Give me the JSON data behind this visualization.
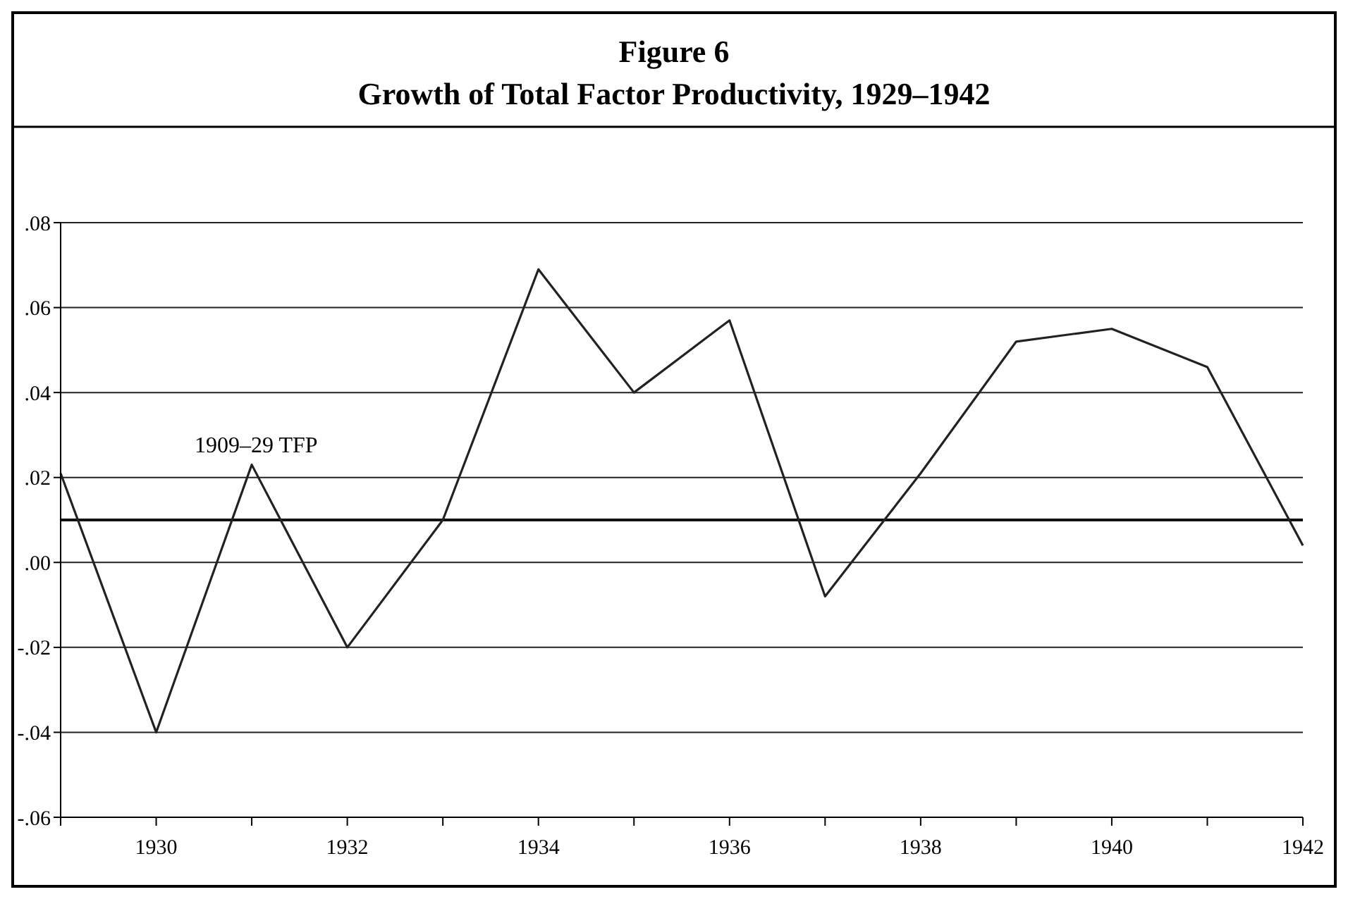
{
  "chart_data": {
    "type": "line",
    "title": "Figure 6",
    "subtitle": "Growth of Total Factor Productivity, 1929–1942",
    "x": [
      1929,
      1930,
      1931,
      1932,
      1933,
      1934,
      1935,
      1936,
      1937,
      1938,
      1939,
      1940,
      1941,
      1942
    ],
    "series": [
      {
        "color": "#222222",
        "values": [
          0.021,
          -0.04,
          0.023,
          -0.02,
          0.01,
          0.069,
          0.04,
          0.057,
          -0.008,
          0.021,
          0.052,
          0.055,
          0.046,
          0.004
        ]
      }
    ],
    "xlim": [
      1929,
      1942
    ],
    "xticks": [
      {
        "value": 1929,
        "label": null
      },
      1930,
      {
        "value": 1931,
        "label": null
      },
      1932,
      {
        "value": 1933,
        "label": null
      },
      1934,
      {
        "value": 1935,
        "label": null
      },
      1936,
      {
        "value": 1937,
        "label": null
      },
      1938,
      {
        "value": 1939,
        "label": null
      },
      1940,
      {
        "value": 1941,
        "label": null
      },
      1942
    ],
    "ylim": [
      -0.06,
      0.08
    ],
    "yticks": [
      {
        "value": -0.06,
        "label": "-.06"
      },
      {
        "value": -0.04,
        "label": "-.04"
      },
      {
        "value": -0.02,
        "label": "-.02"
      },
      {
        "value": 0,
        "label": ".00"
      },
      {
        "value": 0.02,
        "label": ".02"
      },
      {
        "value": 0.04,
        "label": ".04"
      },
      {
        "value": 0.06,
        "label": ".06"
      },
      {
        "value": 0.08,
        "label": ".08"
      }
    ],
    "grid": "y",
    "ref_lines": [
      {
        "axis": "y",
        "value": 0.01,
        "label": "1909–29 TFP",
        "color": "#111111"
      }
    ]
  }
}
